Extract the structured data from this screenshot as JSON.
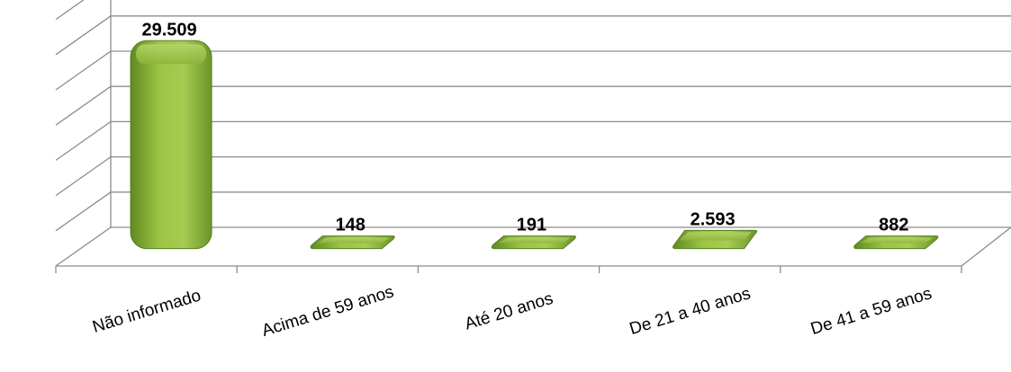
{
  "chart_data": {
    "type": "bar",
    "title": "",
    "xlabel": "",
    "ylabel": "",
    "categories": [
      "Não informado",
      "Acima de 59 anos",
      "Até 20 anos",
      "De 21 a 40 anos",
      "De 41 a 59 anos"
    ],
    "values": [
      29509,
      148,
      191,
      2593,
      882
    ],
    "value_labels": [
      "29.509",
      "148",
      "191",
      "2.593",
      "882"
    ],
    "ylim": [
      0,
      35000
    ],
    "y_gridline_step": 5000,
    "grid": true,
    "legend": "none",
    "style": "3d-rounded-bars",
    "bar_color": "#8db33a"
  }
}
